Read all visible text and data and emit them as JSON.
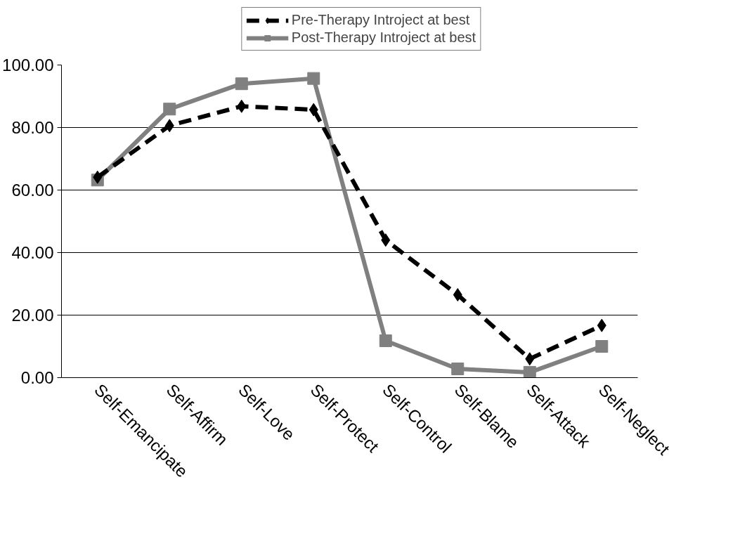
{
  "chart_data": {
    "type": "line",
    "categories": [
      "Self-Emancipate",
      "Self-Affirm",
      "Self-Love",
      "Self-Protect",
      "Self-Control",
      "Self-Blame",
      "Self-Attack",
      "Self-Neglect"
    ],
    "series": [
      {
        "name": "Pre-Therapy Introject at best",
        "color": "#000000",
        "marker": "diamond",
        "line_style": "dashed",
        "values": [
          64.1,
          80.6,
          86.8,
          85.7,
          44.0,
          26.5,
          6.0,
          16.7
        ]
      },
      {
        "name": "Post-Therapy Introject at best",
        "color": "#808080",
        "marker": "square",
        "line_style": "solid",
        "values": [
          63.2,
          85.9,
          94.0,
          95.7,
          11.8,
          2.8,
          1.7,
          10.0
        ]
      }
    ],
    "ylim": [
      0,
      100
    ],
    "yticks": [
      {
        "value": 0,
        "label": "0.00"
      },
      {
        "value": 20,
        "label": "20.00"
      },
      {
        "value": 40,
        "label": "40.00"
      },
      {
        "value": 60,
        "label": "60.00"
      },
      {
        "value": 80,
        "label": "80.00"
      },
      {
        "value": 100,
        "label": "100.00"
      }
    ],
    "grid": "y",
    "legend": "top"
  }
}
